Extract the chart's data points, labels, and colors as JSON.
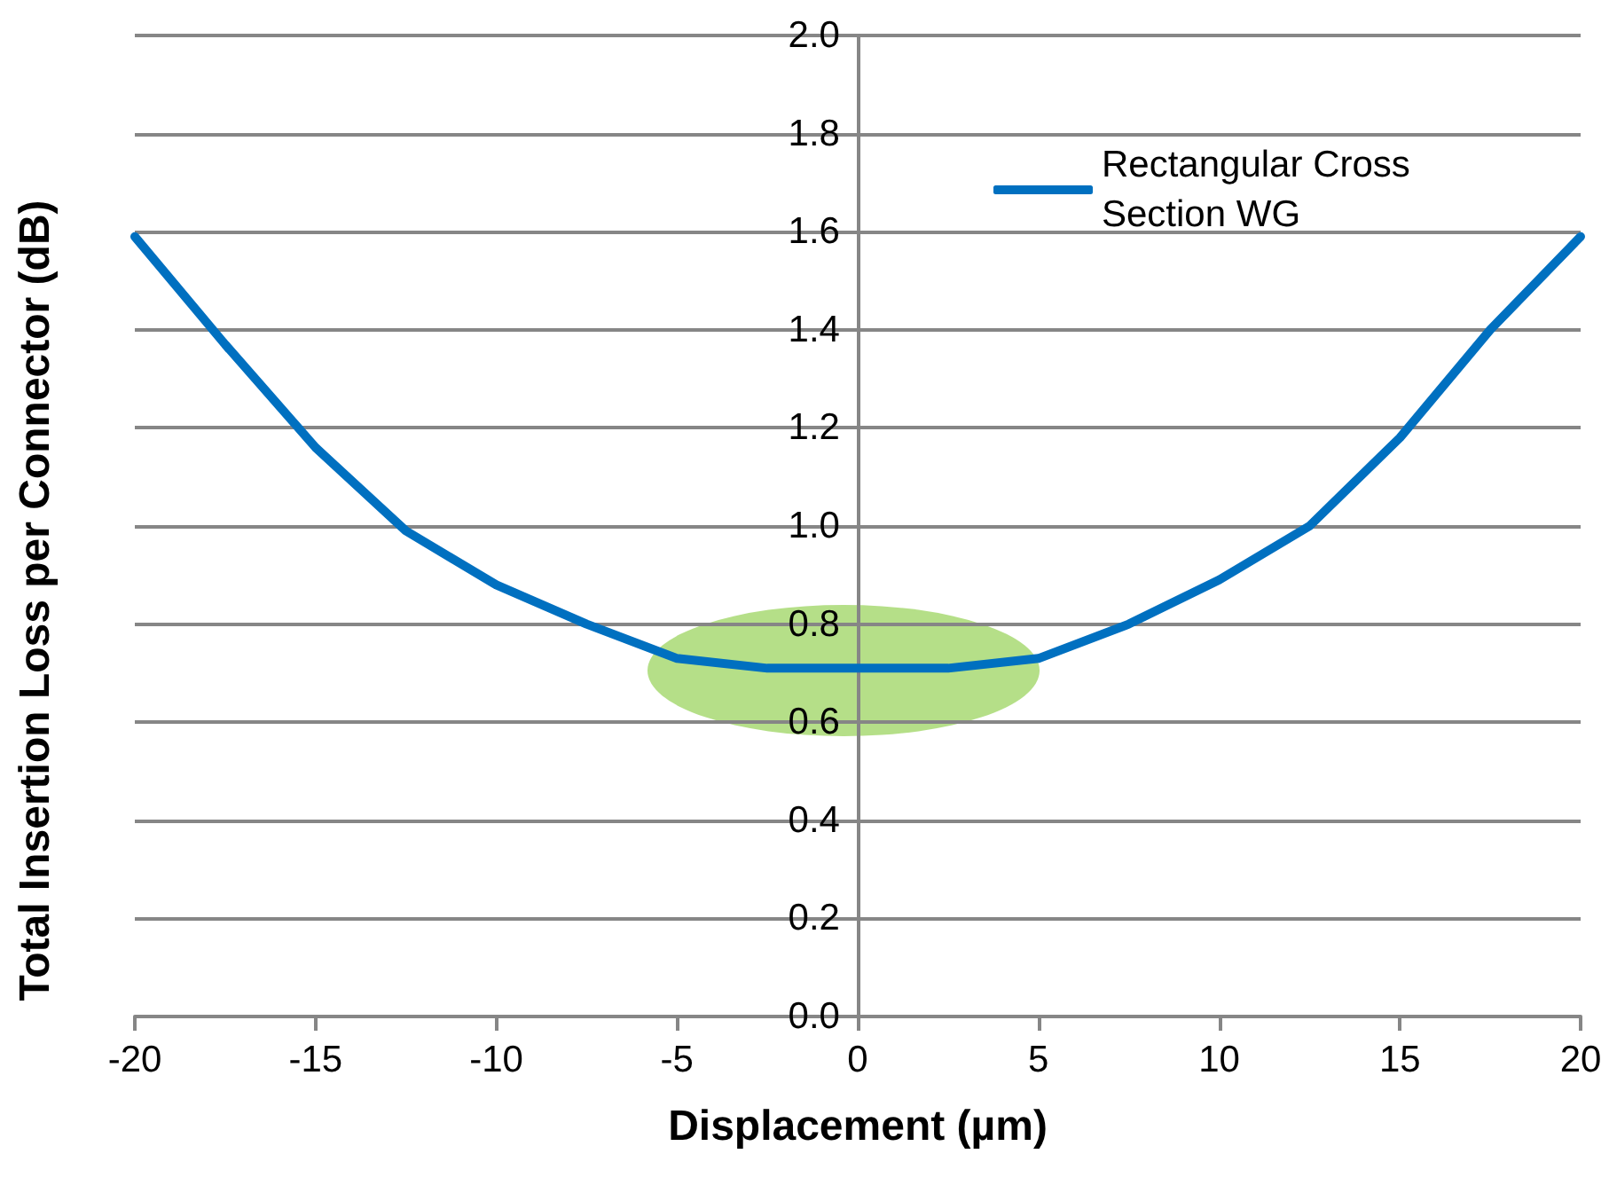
{
  "chart_data": {
    "type": "line",
    "xlabel": "Displacement (µm)",
    "ylabel": "Total Insertion Loss per Connector (dB)",
    "x": [
      -20,
      -17.5,
      -15,
      -12.5,
      -10,
      -7.5,
      -5,
      -2.5,
      0,
      2.5,
      5,
      7.5,
      10,
      12.5,
      15,
      17.5,
      20
    ],
    "series": [
      {
        "name": "Rectangular Cross Section WG",
        "color": "#0070c0",
        "values": [
          1.59,
          1.37,
          1.16,
          0.99,
          0.88,
          0.8,
          0.73,
          0.71,
          0.71,
          0.71,
          0.73,
          0.8,
          0.89,
          1.0,
          1.18,
          1.4,
          1.59
        ]
      }
    ],
    "xlim": [
      -20,
      20
    ],
    "xticks": [
      -20,
      -15,
      -10,
      -5,
      0,
      5,
      10,
      15,
      20
    ],
    "ylim": [
      0,
      2
    ],
    "yticks": [
      {
        "value": 0,
        "label": "0.0"
      },
      {
        "value": 0.2,
        "label": "0.2"
      },
      {
        "value": 0.4,
        "label": "0.4"
      },
      {
        "value": 0.6,
        "label": "0.6"
      },
      {
        "value": 0.8,
        "label": "0.8"
      },
      {
        "value": 1,
        "label": "1.0"
      },
      {
        "value": 1.2,
        "label": "1.2"
      },
      {
        "value": 1.4,
        "label": "1.4"
      },
      {
        "value": 1.6,
        "label": "1.6"
      },
      {
        "value": 1.8,
        "label": "1.8"
      },
      {
        "value": 2,
        "label": "2.0"
      }
    ],
    "grid": "y",
    "legend": "top right",
    "marker": "none",
    "line_style": "solid"
  }
}
